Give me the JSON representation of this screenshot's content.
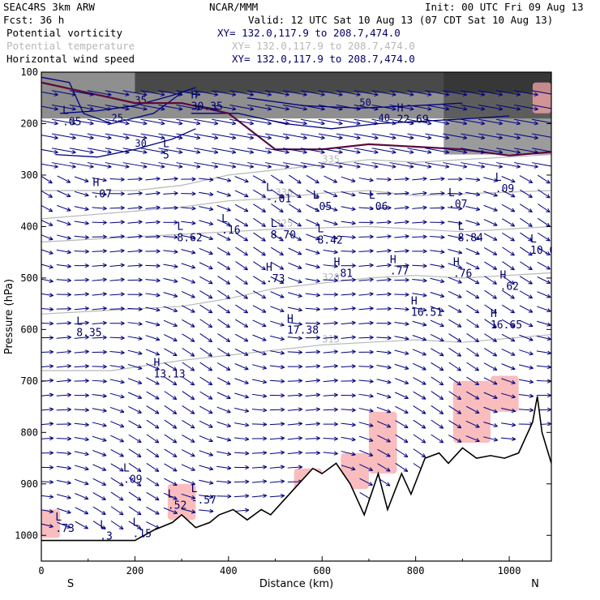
{
  "header": {
    "model": "SEAC4RS  3km ARW",
    "org": "NCAR/MMM",
    "init": "Init: 00 UTC Fri 09 Aug 13",
    "fcst": "Fcst:   36 h",
    "valid": "Valid: 12 UTC Sat 10 Aug 13 (07 CDT Sat 10 Aug 13)",
    "fields": [
      {
        "name": "Potential vorticity",
        "xy": "XY= 132.0,117.9 to 208.7,474.0",
        "color": "#000066"
      },
      {
        "name": "Potential temperature",
        "xy": "XY= 132.0,117.9 to 208.7,474.0",
        "color": "#b8b8b8"
      },
      {
        "name": "Horizontal wind speed",
        "xy": "XY= 132.0,117.9 to 208.7,474.0",
        "color": "#000066"
      }
    ]
  },
  "chart_data": {
    "type": "cross-section",
    "xlabel": "Distance (km)",
    "ylabel": "Pressure (hPa)",
    "xlim": [
      0,
      1090
    ],
    "ylim": [
      1050,
      100
    ],
    "x_ticks": [
      "0",
      "200",
      "400",
      "600",
      "800",
      "1000"
    ],
    "y_ticks": [
      "100",
      "200",
      "300",
      "400",
      "500",
      "600",
      "700",
      "800",
      "900",
      "1000"
    ],
    "x_end_labels": {
      "left": "S",
      "right": "N"
    },
    "terrain_km_hpa": [
      [
        0,
        1010
      ],
      [
        200,
        1010
      ],
      [
        240,
        990
      ],
      [
        280,
        975
      ],
      [
        300,
        960
      ],
      [
        330,
        985
      ],
      [
        360,
        975
      ],
      [
        380,
        960
      ],
      [
        410,
        950
      ],
      [
        440,
        970
      ],
      [
        470,
        950
      ],
      [
        490,
        960
      ],
      [
        520,
        930
      ],
      [
        550,
        900
      ],
      [
        580,
        870
      ],
      [
        600,
        880
      ],
      [
        630,
        860
      ],
      [
        660,
        900
      ],
      [
        690,
        960
      ],
      [
        720,
        880
      ],
      [
        740,
        950
      ],
      [
        770,
        880
      ],
      [
        790,
        920
      ],
      [
        820,
        850
      ],
      [
        850,
        840
      ],
      [
        870,
        860
      ],
      [
        900,
        830
      ],
      [
        930,
        850
      ],
      [
        960,
        845
      ],
      [
        990,
        850
      ],
      [
        1020,
        840
      ],
      [
        1050,
        780
      ],
      [
        1060,
        730
      ],
      [
        1070,
        800
      ],
      [
        1090,
        860
      ]
    ],
    "tropopause_km_hpa": [
      [
        0,
        120
      ],
      [
        100,
        140
      ],
      [
        200,
        160
      ],
      [
        300,
        160
      ],
      [
        400,
        180
      ],
      [
        500,
        250
      ],
      [
        600,
        250
      ],
      [
        700,
        240
      ],
      [
        800,
        245
      ],
      [
        900,
        250
      ],
      [
        1000,
        262
      ],
      [
        1090,
        255
      ]
    ],
    "theta_isentropes": [
      {
        "label": "335",
        "km_hpa": [
          [
            0,
            330
          ],
          [
            200,
            330
          ],
          [
            300,
            320
          ],
          [
            400,
            300
          ],
          [
            500,
            290
          ],
          [
            600,
            280
          ],
          [
            700,
            270
          ],
          [
            800,
            275
          ],
          [
            900,
            270
          ],
          [
            1090,
            260
          ]
        ]
      },
      {
        "label": "330",
        "km_hpa": [
          [
            0,
            385
          ],
          [
            200,
            370
          ],
          [
            300,
            362
          ],
          [
            400,
            350
          ],
          [
            500,
            345
          ],
          [
            600,
            335
          ],
          [
            700,
            330
          ],
          [
            800,
            340
          ],
          [
            1090,
            330
          ]
        ]
      },
      {
        "label": "325",
        "km_hpa": [
          [
            0,
            430
          ],
          [
            200,
            420
          ],
          [
            400,
            410
          ],
          [
            500,
            405
          ],
          [
            700,
            400
          ],
          [
            900,
            410
          ],
          [
            1090,
            400
          ]
        ]
      },
      {
        "label": "320",
        "km_hpa": [
          [
            0,
            570
          ],
          [
            200,
            560
          ],
          [
            300,
            555
          ],
          [
            400,
            540
          ],
          [
            500,
            520
          ],
          [
            600,
            510
          ],
          [
            700,
            500
          ],
          [
            800,
            495
          ],
          [
            900,
            500
          ],
          [
            1090,
            490
          ]
        ]
      },
      {
        "label": "315",
        "km_hpa": [
          [
            0,
            680
          ],
          [
            150,
            680
          ],
          [
            300,
            660
          ],
          [
            400,
            650
          ],
          [
            500,
            640
          ],
          [
            600,
            630
          ],
          [
            700,
            625
          ],
          [
            800,
            620
          ],
          [
            900,
            625
          ],
          [
            1090,
            610
          ]
        ]
      }
    ],
    "wind_speed_contours": [
      {
        "label": "25",
        "km_hpa": [
          [
            0,
            110
          ],
          [
            60,
            120
          ],
          [
            90,
            180
          ],
          [
            150,
            200
          ],
          [
            240,
            180
          ],
          [
            300,
            140
          ]
        ]
      },
      {
        "label": "30",
        "km_hpa": [
          [
            30,
            260
          ],
          [
            120,
            265
          ],
          [
            200,
            250
          ],
          [
            280,
            230
          ],
          [
            330,
            210
          ]
        ]
      },
      {
        "label": "35",
        "km_hpa": [
          [
            40,
            180
          ],
          [
            120,
            175
          ],
          [
            200,
            165
          ],
          [
            280,
            145
          ],
          [
            330,
            130
          ]
        ]
      },
      {
        "label": "40",
        "km_hpa": [
          [
            320,
            180
          ],
          [
            420,
            180
          ],
          [
            520,
            200
          ],
          [
            620,
            210
          ],
          [
            720,
            200
          ],
          [
            820,
            195
          ],
          [
            920,
            190
          ],
          [
            1000,
            185
          ]
        ]
      },
      {
        "label": "50",
        "km_hpa": [
          [
            440,
            150
          ],
          [
            560,
            165
          ],
          [
            680,
            170
          ],
          [
            800,
            165
          ],
          [
            900,
            160
          ]
        ]
      }
    ],
    "pv_shading_pvu": [
      {
        "x0": 0,
        "x1": 1090,
        "p0": 100,
        "p1": 190,
        "color": "#333333",
        "opacity": 0.55
      },
      {
        "x0": 200,
        "x1": 1090,
        "p0": 100,
        "p1": 140,
        "color": "#111111",
        "opacity": 0.55
      },
      {
        "x0": 860,
        "x1": 1090,
        "p0": 100,
        "p1": 260,
        "color": "#222222",
        "opacity": 0.45
      }
    ],
    "pv_terrain_patches": [
      {
        "x0": 0,
        "x1": 40,
        "p0": 950,
        "p1": 1005
      },
      {
        "x0": 270,
        "x1": 330,
        "p0": 900,
        "p1": 970
      },
      {
        "x0": 540,
        "x1": 600,
        "p0": 870,
        "p1": 930
      },
      {
        "x0": 640,
        "x1": 700,
        "p0": 840,
        "p1": 910
      },
      {
        "x0": 700,
        "x1": 760,
        "p0": 760,
        "p1": 880
      },
      {
        "x0": 880,
        "x1": 960,
        "p0": 700,
        "p1": 820
      },
      {
        "x0": 960,
        "x1": 1020,
        "p0": 690,
        "p1": 760
      },
      {
        "x0": 1050,
        "x1": 1090,
        "p0": 120,
        "p1": 180
      }
    ],
    "high_low_labels": [
      {
        "type": "L",
        "value": ".05",
        "km": 45,
        "hpa": 200
      },
      {
        "type": "L",
        "value": "5",
        "km": 260,
        "hpa": 265
      },
      {
        "type": "H",
        "value": "30.35",
        "km": 320,
        "hpa": 170
      },
      {
        "type": "H",
        "value": "22.69",
        "km": 760,
        "hpa": 195
      },
      {
        "type": "H",
        "value": ".07",
        "km": 110,
        "hpa": 340
      },
      {
        "type": "L",
        "value": "-.01",
        "km": 480,
        "hpa": 350
      },
      {
        "type": "L",
        "value": ".05",
        "km": 580,
        "hpa": 365
      },
      {
        "type": "L",
        "value": ".06",
        "km": 700,
        "hpa": 365
      },
      {
        "type": "L",
        "value": ".07",
        "km": 870,
        "hpa": 360
      },
      {
        "type": "L",
        "value": ".09",
        "km": 970,
        "hpa": 330
      },
      {
        "type": "L",
        "value": "8.62",
        "km": 290,
        "hpa": 425
      },
      {
        "type": "L",
        "value": ".16",
        "km": 385,
        "hpa": 410
      },
      {
        "type": "L",
        "value": "8.70",
        "km": 490,
        "hpa": 420
      },
      {
        "type": "L",
        "value": "8.42",
        "km": 590,
        "hpa": 430
      },
      {
        "type": "L",
        "value": "8.84",
        "km": 890,
        "hpa": 425
      },
      {
        "type": "L",
        "value": "10.0",
        "km": 1045,
        "hpa": 450
      },
      {
        "type": "H",
        "value": ".73",
        "km": 480,
        "hpa": 505
      },
      {
        "type": "H",
        "value": ".81",
        "km": 625,
        "hpa": 495
      },
      {
        "type": "H",
        "value": ".77",
        "km": 745,
        "hpa": 490
      },
      {
        "type": "H",
        "value": ".76",
        "km": 880,
        "hpa": 495
      },
      {
        "type": "H",
        "value": ".62",
        "km": 980,
        "hpa": 520
      },
      {
        "type": "H",
        "value": "16.51",
        "km": 790,
        "hpa": 570
      },
      {
        "type": "H",
        "value": "16.65",
        "km": 960,
        "hpa": 595
      },
      {
        "type": "H",
        "value": "17.38",
        "km": 525,
        "hpa": 605
      },
      {
        "type": "L",
        "value": "8.35",
        "km": 75,
        "hpa": 610
      },
      {
        "type": "H",
        "value": "13.13",
        "km": 240,
        "hpa": 690
      },
      {
        "type": "L",
        "value": ".09",
        "km": 175,
        "hpa": 895
      },
      {
        "type": "L",
        "value": ".52",
        "km": 270,
        "hpa": 945
      },
      {
        "type": "L",
        "value": "-.57",
        "km": 320,
        "hpa": 935
      },
      {
        "type": "L",
        "value": ".15",
        "km": 195,
        "hpa": 1000
      },
      {
        "type": "L",
        "value": ".3",
        "km": 125,
        "hpa": 1005
      },
      {
        "type": "L",
        "value": ".73",
        "km": 30,
        "hpa": 990
      }
    ]
  }
}
